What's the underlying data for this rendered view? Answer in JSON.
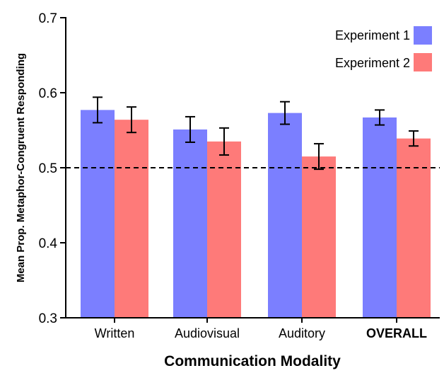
{
  "chart_data": {
    "type": "bar",
    "title": "",
    "xlabel": "Communication Modality",
    "ylabel": "Mean Prop. Metaphor-Congruent Responding",
    "categories": [
      "Written",
      "Audiovisual",
      "Auditory",
      "OVERALL"
    ],
    "bold_categories": [
      "OVERALL"
    ],
    "ylim": [
      0.3,
      0.7
    ],
    "yticks": [
      "0.3",
      "0.4",
      "0.5",
      "0.6",
      "0.7"
    ],
    "reference_line": {
      "y": 0.5,
      "style": "dashed"
    },
    "legend_position": "top-right",
    "series": [
      {
        "name": "Experiment 1",
        "color": "#7b7fff",
        "values": [
          0.577,
          0.551,
          0.573,
          0.567
        ],
        "error": [
          0.017,
          0.017,
          0.015,
          0.01
        ]
      },
      {
        "name": "Experiment 2",
        "color": "#fe7a79",
        "values": [
          0.564,
          0.535,
          0.515,
          0.539
        ],
        "error": [
          0.017,
          0.018,
          0.017,
          0.01
        ]
      }
    ]
  }
}
